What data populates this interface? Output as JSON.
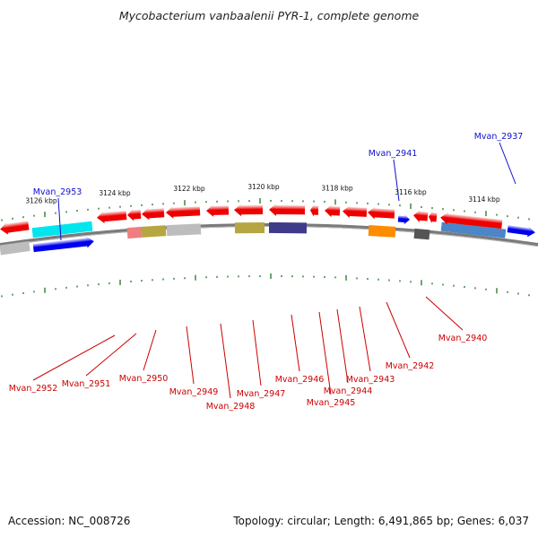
{
  "title": "Mycobacterium vanbaalenii PYR-1, complete genome",
  "footer": {
    "accession": "Accession: NC_008726",
    "summary": "Topology: circular; Length: 6,491,865 bp; Genes: 6,037"
  },
  "colors": {
    "backbone": "#7a7a7a",
    "tick": "#2e7d32",
    "forward_label": "#1010cc",
    "reverse_label": "#cc0000"
  },
  "scale_labels": [
    "3126 kbp",
    "3124 kbp",
    "3122 kbp",
    "3120 kbp",
    "3118 kbp",
    "3116 kbp",
    "3114 kbp"
  ],
  "forward_genes": [
    {
      "id": "Mvan_2953",
      "color": "#0000ee",
      "cog_color": "#00e5ee"
    },
    {
      "id": "Mvan_2941",
      "color": "#1a1aee"
    },
    {
      "id": "Mvan_2937",
      "color": "#1a1aee"
    }
  ],
  "reverse_genes": [
    {
      "id": "Mvan_2952",
      "color": "#ee0000",
      "cog_color": "#bdbdbd"
    },
    {
      "id": "Mvan_2951",
      "color": "#ee0000"
    },
    {
      "id": "Mvan_2950",
      "color": "#ee0000",
      "cog_color": "#ef7f7f"
    },
    {
      "id": "Mvan_2949",
      "color": "#ee0000",
      "cog_color": "#b5a642"
    },
    {
      "id": "Mvan_2948",
      "color": "#ee0000",
      "cog_color": "#bdbdbd"
    },
    {
      "id": "Mvan_2947",
      "color": "#ee0000"
    },
    {
      "id": "Mvan_2946",
      "color": "#ee0000",
      "cog_color": "#b5a642"
    },
    {
      "id": "Mvan_2945",
      "color": "#ee0000",
      "cog_color": "#3f3a8a"
    },
    {
      "id": "Mvan_2944",
      "color": "#ee0000"
    },
    {
      "id": "Mvan_2943",
      "color": "#ee0000"
    },
    {
      "id": "Mvan_2942",
      "color": "#ee0000",
      "cog_color": "#ff8c00"
    },
    {
      "id": "Mvan_2940",
      "color": "#ee0000",
      "cog_color": "#555555"
    }
  ]
}
